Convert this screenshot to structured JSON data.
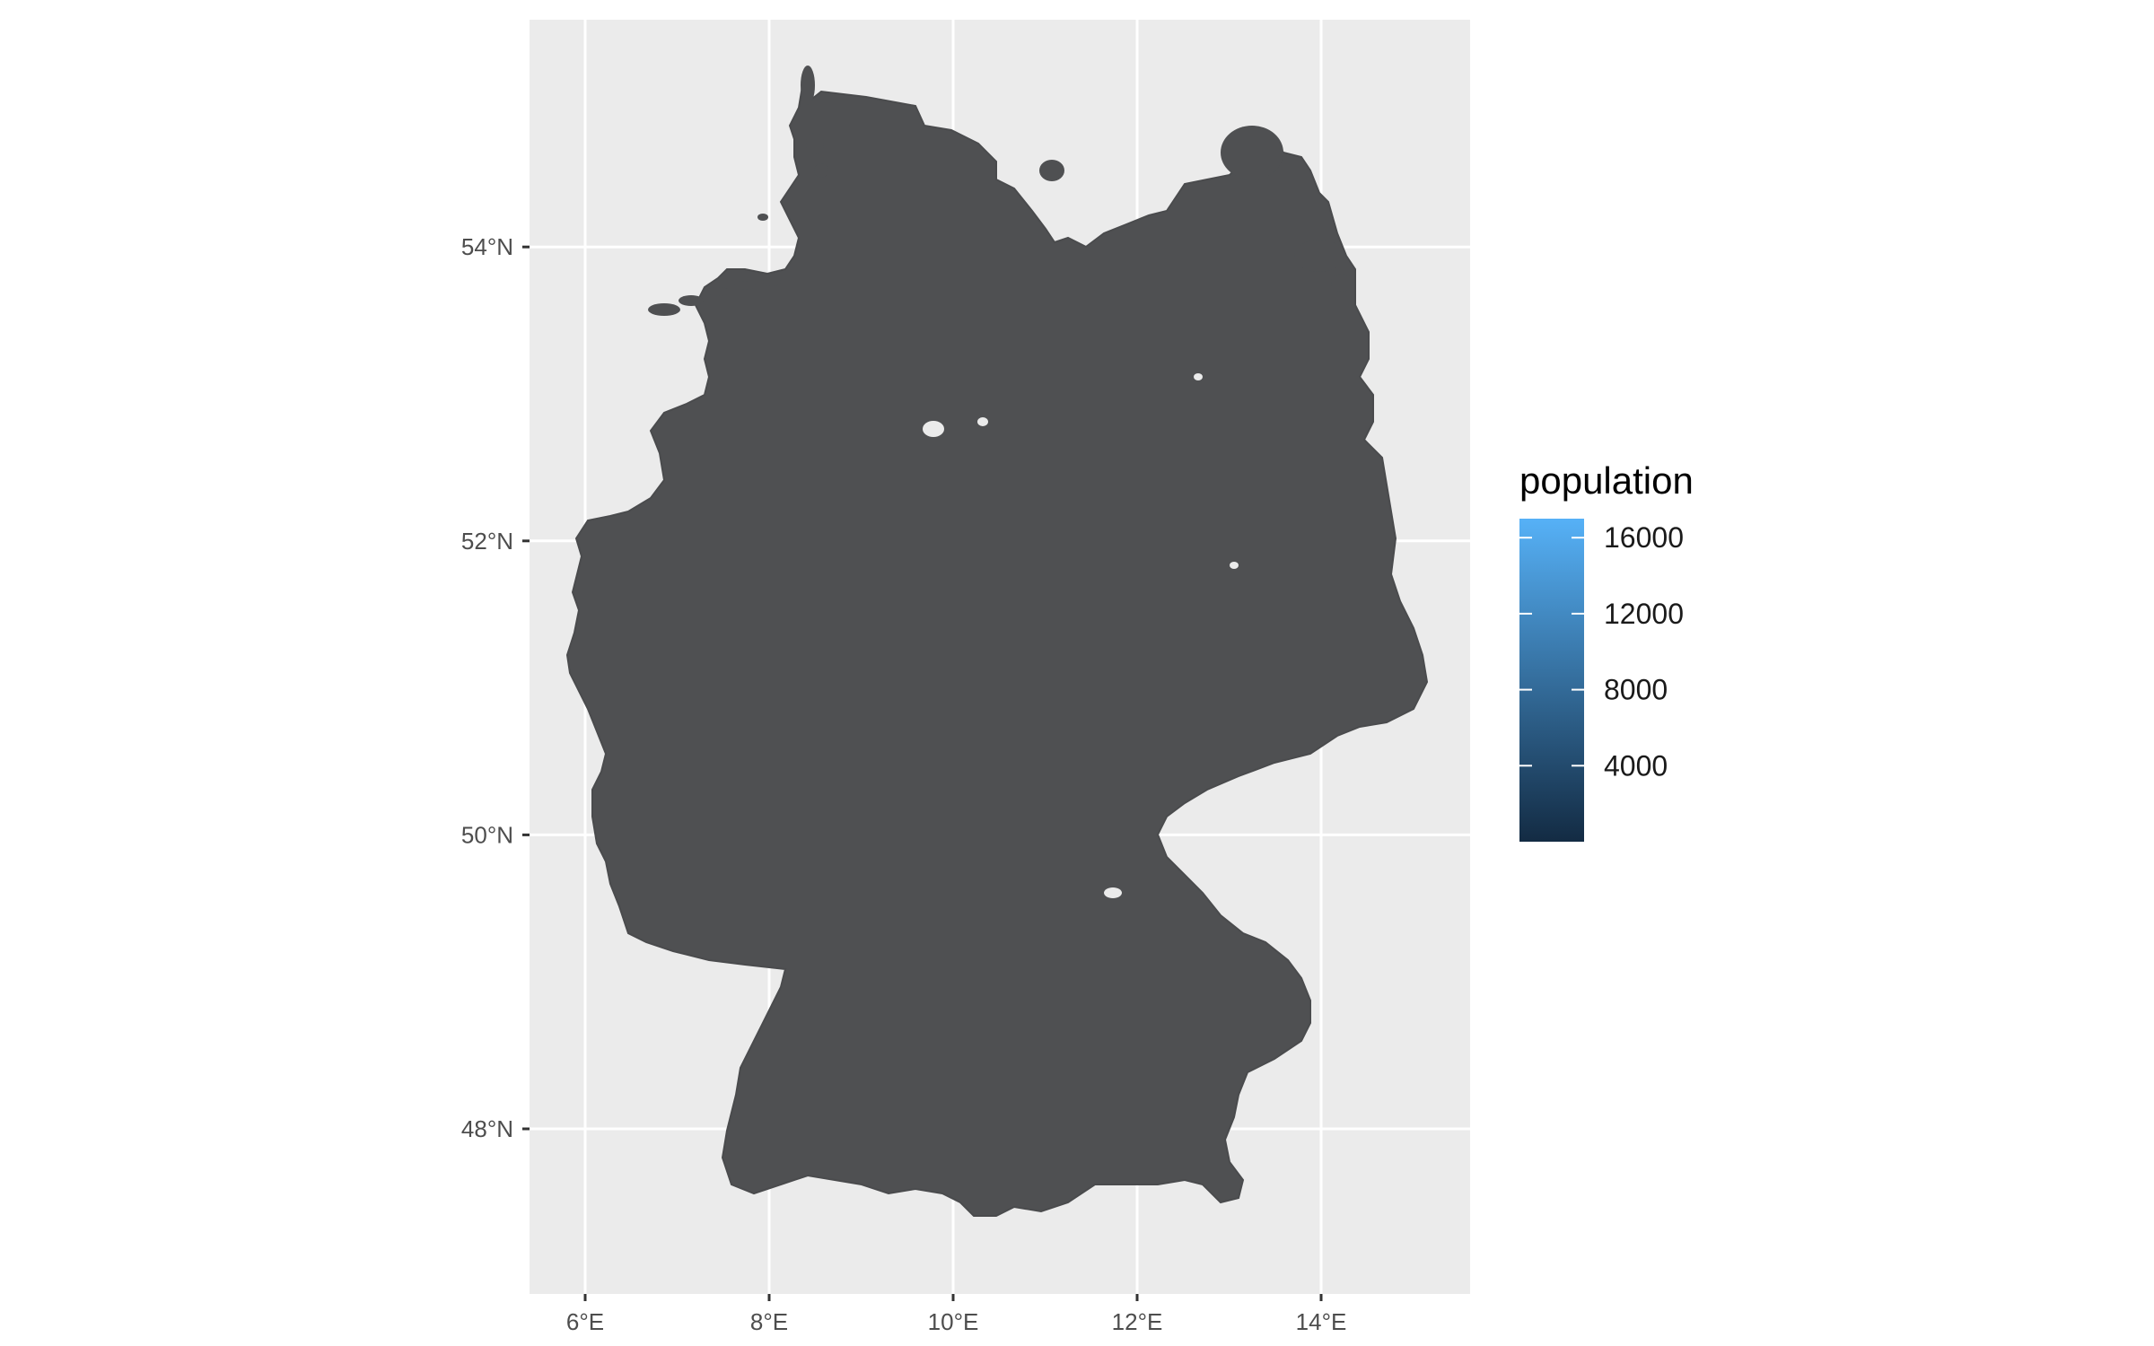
{
  "chart_data": {
    "type": "choropleth map",
    "x_axis": {
      "range": [
        5.4,
        15.5
      ],
      "ticks": [
        6,
        8,
        10,
        12,
        14
      ],
      "tick_labels": [
        "6°E",
        "8°E",
        "10°E",
        "12°E",
        "14°E"
      ]
    },
    "y_axis": {
      "range": [
        47.0,
        55.5
      ],
      "ticks": [
        48,
        50,
        52,
        54
      ],
      "tick_labels": [
        "48°N",
        "50°N",
        "52°N",
        "54°N"
      ]
    },
    "grid": true,
    "legend": {
      "title": "population",
      "placement": "right",
      "type": "colorbar",
      "ticks": [
        4000,
        8000,
        12000,
        16000
      ],
      "tick_labels": [
        "4000",
        "8000",
        "12000",
        "16000"
      ],
      "range": [
        0,
        17000
      ],
      "color_low": "#132b43",
      "color_high": "#56b1f7"
    },
    "region": "Germany",
    "fill_color": "#4f5052"
  }
}
